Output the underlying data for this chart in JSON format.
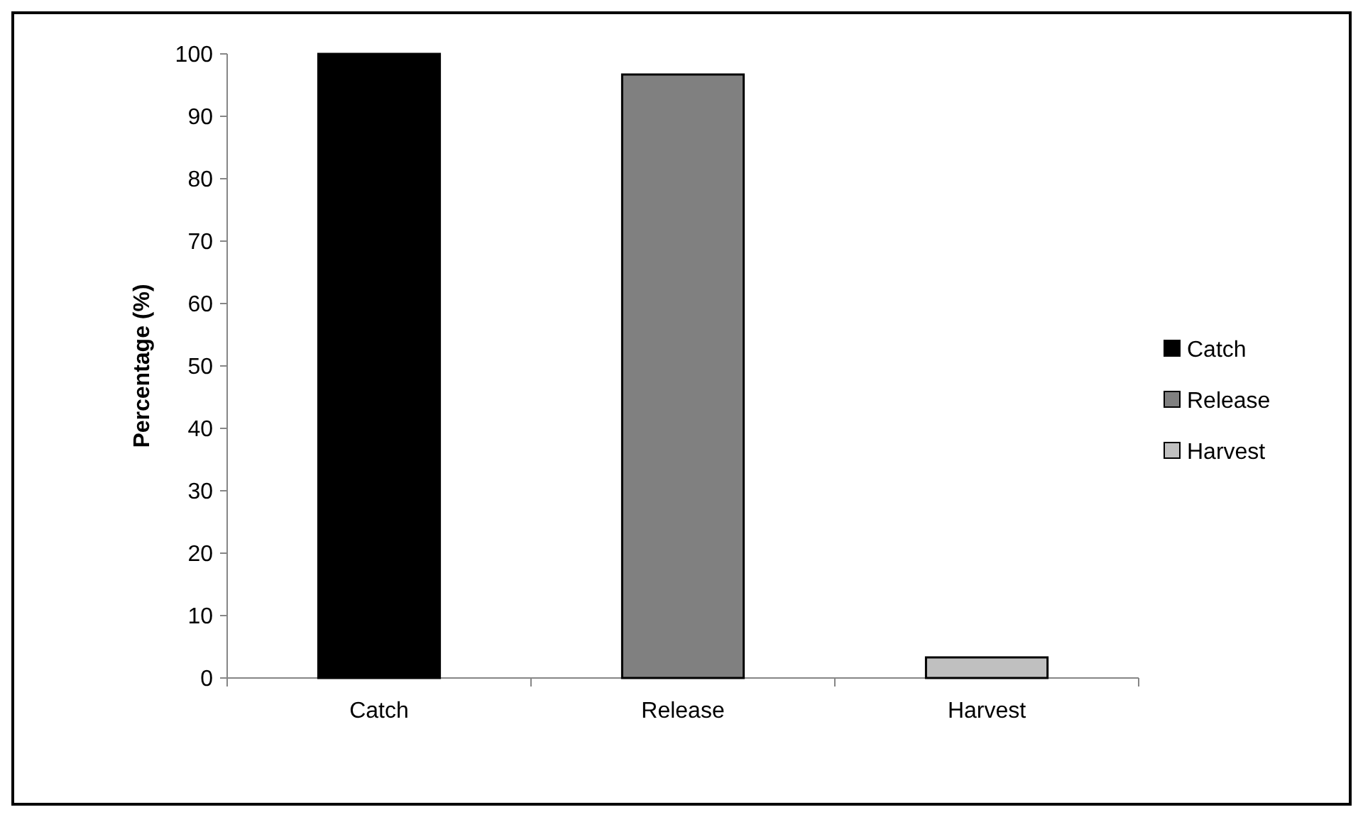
{
  "chart_data": {
    "type": "bar",
    "ylabel": "Percentage (%)",
    "categories": [
      "Catch",
      "Release",
      "Harvest"
    ],
    "series": [
      {
        "name": "Catch",
        "color": "#000000",
        "values": [
          100,
          null,
          null
        ]
      },
      {
        "name": "Release",
        "color": "#808080",
        "values": [
          null,
          96.7,
          null
        ]
      },
      {
        "name": "Harvest",
        "color": "#c0c0c0",
        "values": [
          null,
          null,
          3.3
        ]
      }
    ],
    "ylim": [
      0,
      100
    ],
    "yticks": [
      0,
      10,
      20,
      30,
      40,
      50,
      60,
      70,
      80,
      90,
      100
    ],
    "legend": "right"
  }
}
